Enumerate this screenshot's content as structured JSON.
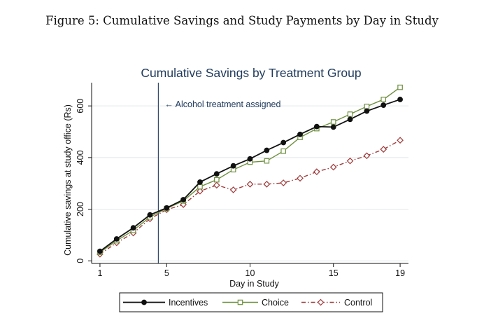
{
  "figure_caption": "Figure 5:  Cumulative Savings and Study Payments by Day in Study",
  "chart_data": {
    "type": "line",
    "title": "Cumulative Savings by Treatment Group",
    "xlabel": "Day in Study",
    "ylabel": "Cumulative savings at study office (Rs)",
    "xlim": [
      0.5,
      19.5
    ],
    "ylim": [
      -10,
      690
    ],
    "xticks": [
      1,
      5,
      10,
      15,
      19
    ],
    "yticks": [
      0,
      200,
      400,
      600
    ],
    "grid": true,
    "legend_position": "bottom",
    "annotation": {
      "text": "← Alcohol treatment assigned",
      "x": 4.5
    },
    "x": [
      1,
      2,
      3,
      4,
      5,
      6,
      7,
      8,
      9,
      10,
      11,
      12,
      13,
      14,
      15,
      16,
      17,
      18,
      19
    ],
    "series": [
      {
        "name": "Incentives",
        "color": "#111111",
        "marker": "filled-circle",
        "line_style": "solid",
        "values": [
          37,
          85,
          128,
          178,
          205,
          237,
          305,
          337,
          368,
          395,
          428,
          458,
          490,
          520,
          518,
          548,
          580,
          603,
          625
        ]
      },
      {
        "name": "Choice",
        "color": "#6f8f3f",
        "marker": "hollow-square",
        "line_style": "solid",
        "values": [
          33,
          78,
          118,
          170,
          203,
          232,
          287,
          314,
          353,
          382,
          387,
          425,
          478,
          512,
          538,
          568,
          598,
          625,
          672
        ]
      },
      {
        "name": "Control",
        "color": "#9e3a3a",
        "marker": "hollow-diamond",
        "line_style": "dash-dot",
        "values": [
          26,
          70,
          108,
          163,
          198,
          218,
          270,
          293,
          275,
          297,
          297,
          302,
          320,
          345,
          363,
          387,
          407,
          432,
          467
        ]
      }
    ]
  }
}
